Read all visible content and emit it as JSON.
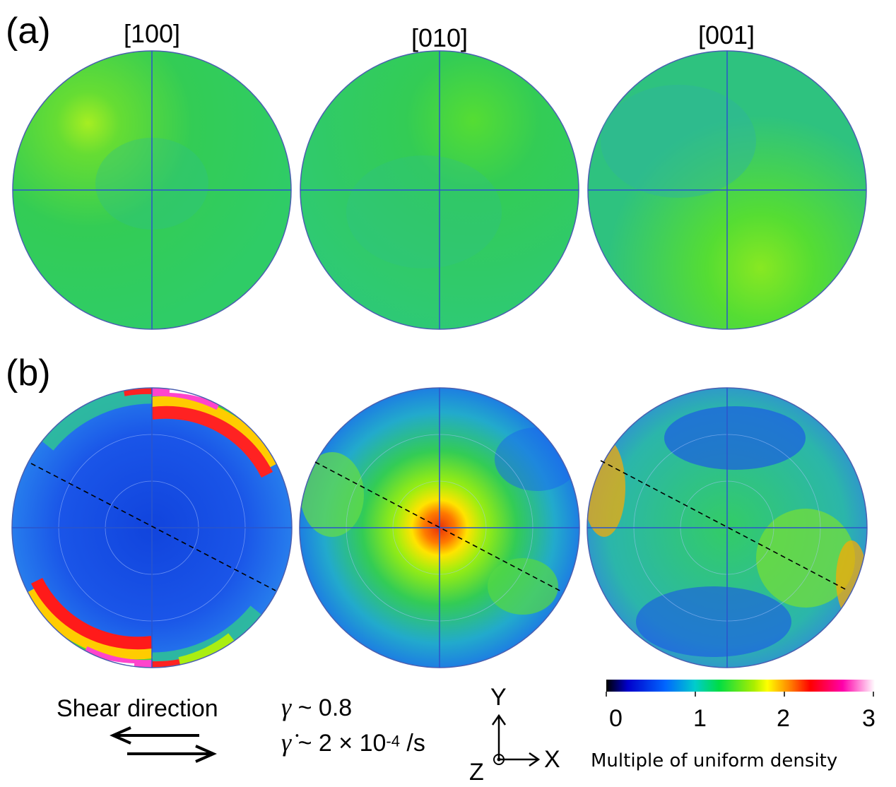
{
  "panels": {
    "a_label": "(a)",
    "b_label": "(b)"
  },
  "column_headers": [
    "[100]",
    "[010]",
    "[001]"
  ],
  "legend": {
    "shear_direction": "Shear direction",
    "gamma_symbol": "γ",
    "gamma_value": " ~ 0.8",
    "gamma_rate_symbol": "γ̇",
    "gamma_rate_value": " ~ 2 × 10",
    "gamma_rate_exponent": "-4",
    "gamma_rate_unit": " /s"
  },
  "axes_triad": {
    "y": "Y",
    "x": "X",
    "z": "Z"
  },
  "colorbar": {
    "ticks": [
      "0",
      "1",
      "2",
      "3"
    ],
    "label": "Multiple of uniform density",
    "colors": [
      "#000000",
      "#0000cc",
      "#0066ff",
      "#00cccc",
      "#00dd44",
      "#aaee00",
      "#ffff00",
      "#ff8800",
      "#ff0000",
      "#ff00aa",
      "#ffffff"
    ]
  },
  "colors": {
    "circle_outline": "#4a5fb0",
    "low_density": "#1a55e8",
    "uniform": "#33cc66",
    "high_density": "#ff1a1a"
  }
}
